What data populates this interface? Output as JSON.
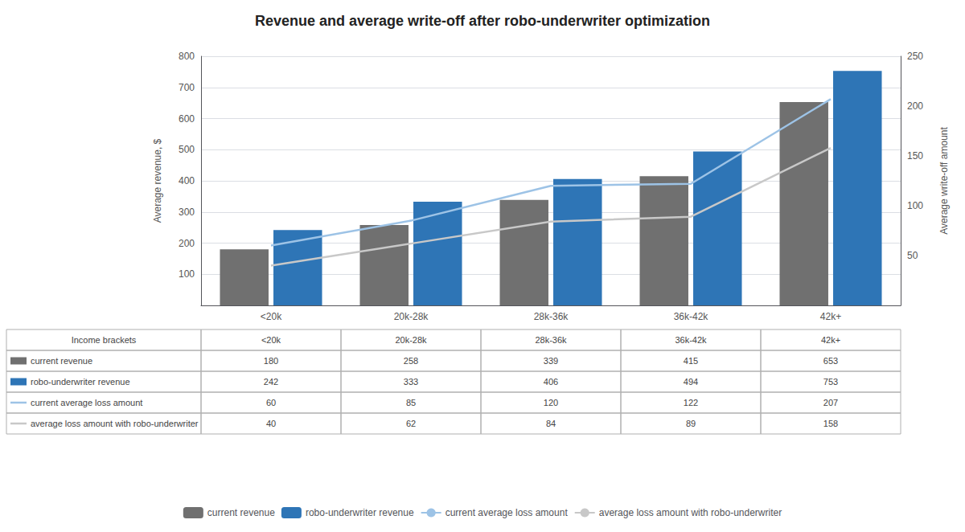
{
  "chart_data": {
    "type": "bar",
    "title": "Revenue and average write-off after robo-underwriter optimization",
    "categories": [
      "<20k",
      "20k-28k",
      "28k-36k",
      "36k-42k",
      "42k+"
    ],
    "xlabel": "Income brackets",
    "ylabel": "Average revenue, $",
    "y2label": "Average write-off amount",
    "series": [
      {
        "name": "current revenue",
        "type": "bar",
        "color": "#707070",
        "values": [
          180,
          258,
          339,
          415,
          653
        ]
      },
      {
        "name": "robo-underwriter revenue",
        "type": "bar",
        "color": "#2e75b6",
        "values": [
          242,
          333,
          406,
          494,
          753
        ]
      },
      {
        "name": "current average loss amount",
        "type": "line",
        "color": "#9dc3e6",
        "axis": "y2",
        "values": [
          60,
          85,
          120,
          122,
          207
        ]
      },
      {
        "name": "average loss amount with robo-underwriter",
        "type": "line",
        "color": "#c8c8c8",
        "axis": "y2",
        "values": [
          40,
          62,
          84,
          89,
          158
        ]
      }
    ],
    "ylim": [
      0,
      800
    ],
    "yticks": [
      {
        "value": 0,
        "label": ""
      },
      100,
      200,
      300,
      400,
      500,
      600,
      700,
      800
    ],
    "y2lim": [
      0,
      250
    ],
    "y2ticks": [
      {
        "value": 0,
        "label": ""
      },
      50,
      100,
      150,
      200,
      250
    ],
    "grid": true,
    "legend": "bottom"
  }
}
